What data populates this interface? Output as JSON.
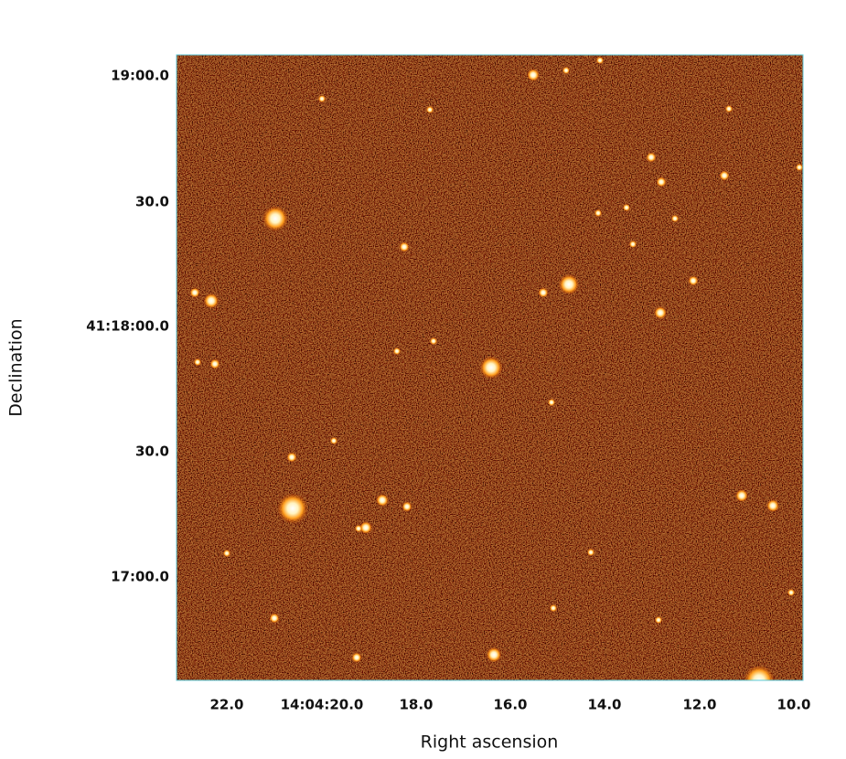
{
  "plot": {
    "x_label": "Right ascension",
    "y_label": "Declination",
    "x_ticks": [
      "22.0",
      "14:04:20.0",
      "18.0",
      "16.0",
      "14.0",
      "12.0",
      "10.0"
    ],
    "y_ticks": [
      "19:00.0",
      "30.0",
      "41:18:00.0",
      "30.0",
      "17:00.0"
    ]
  }
}
